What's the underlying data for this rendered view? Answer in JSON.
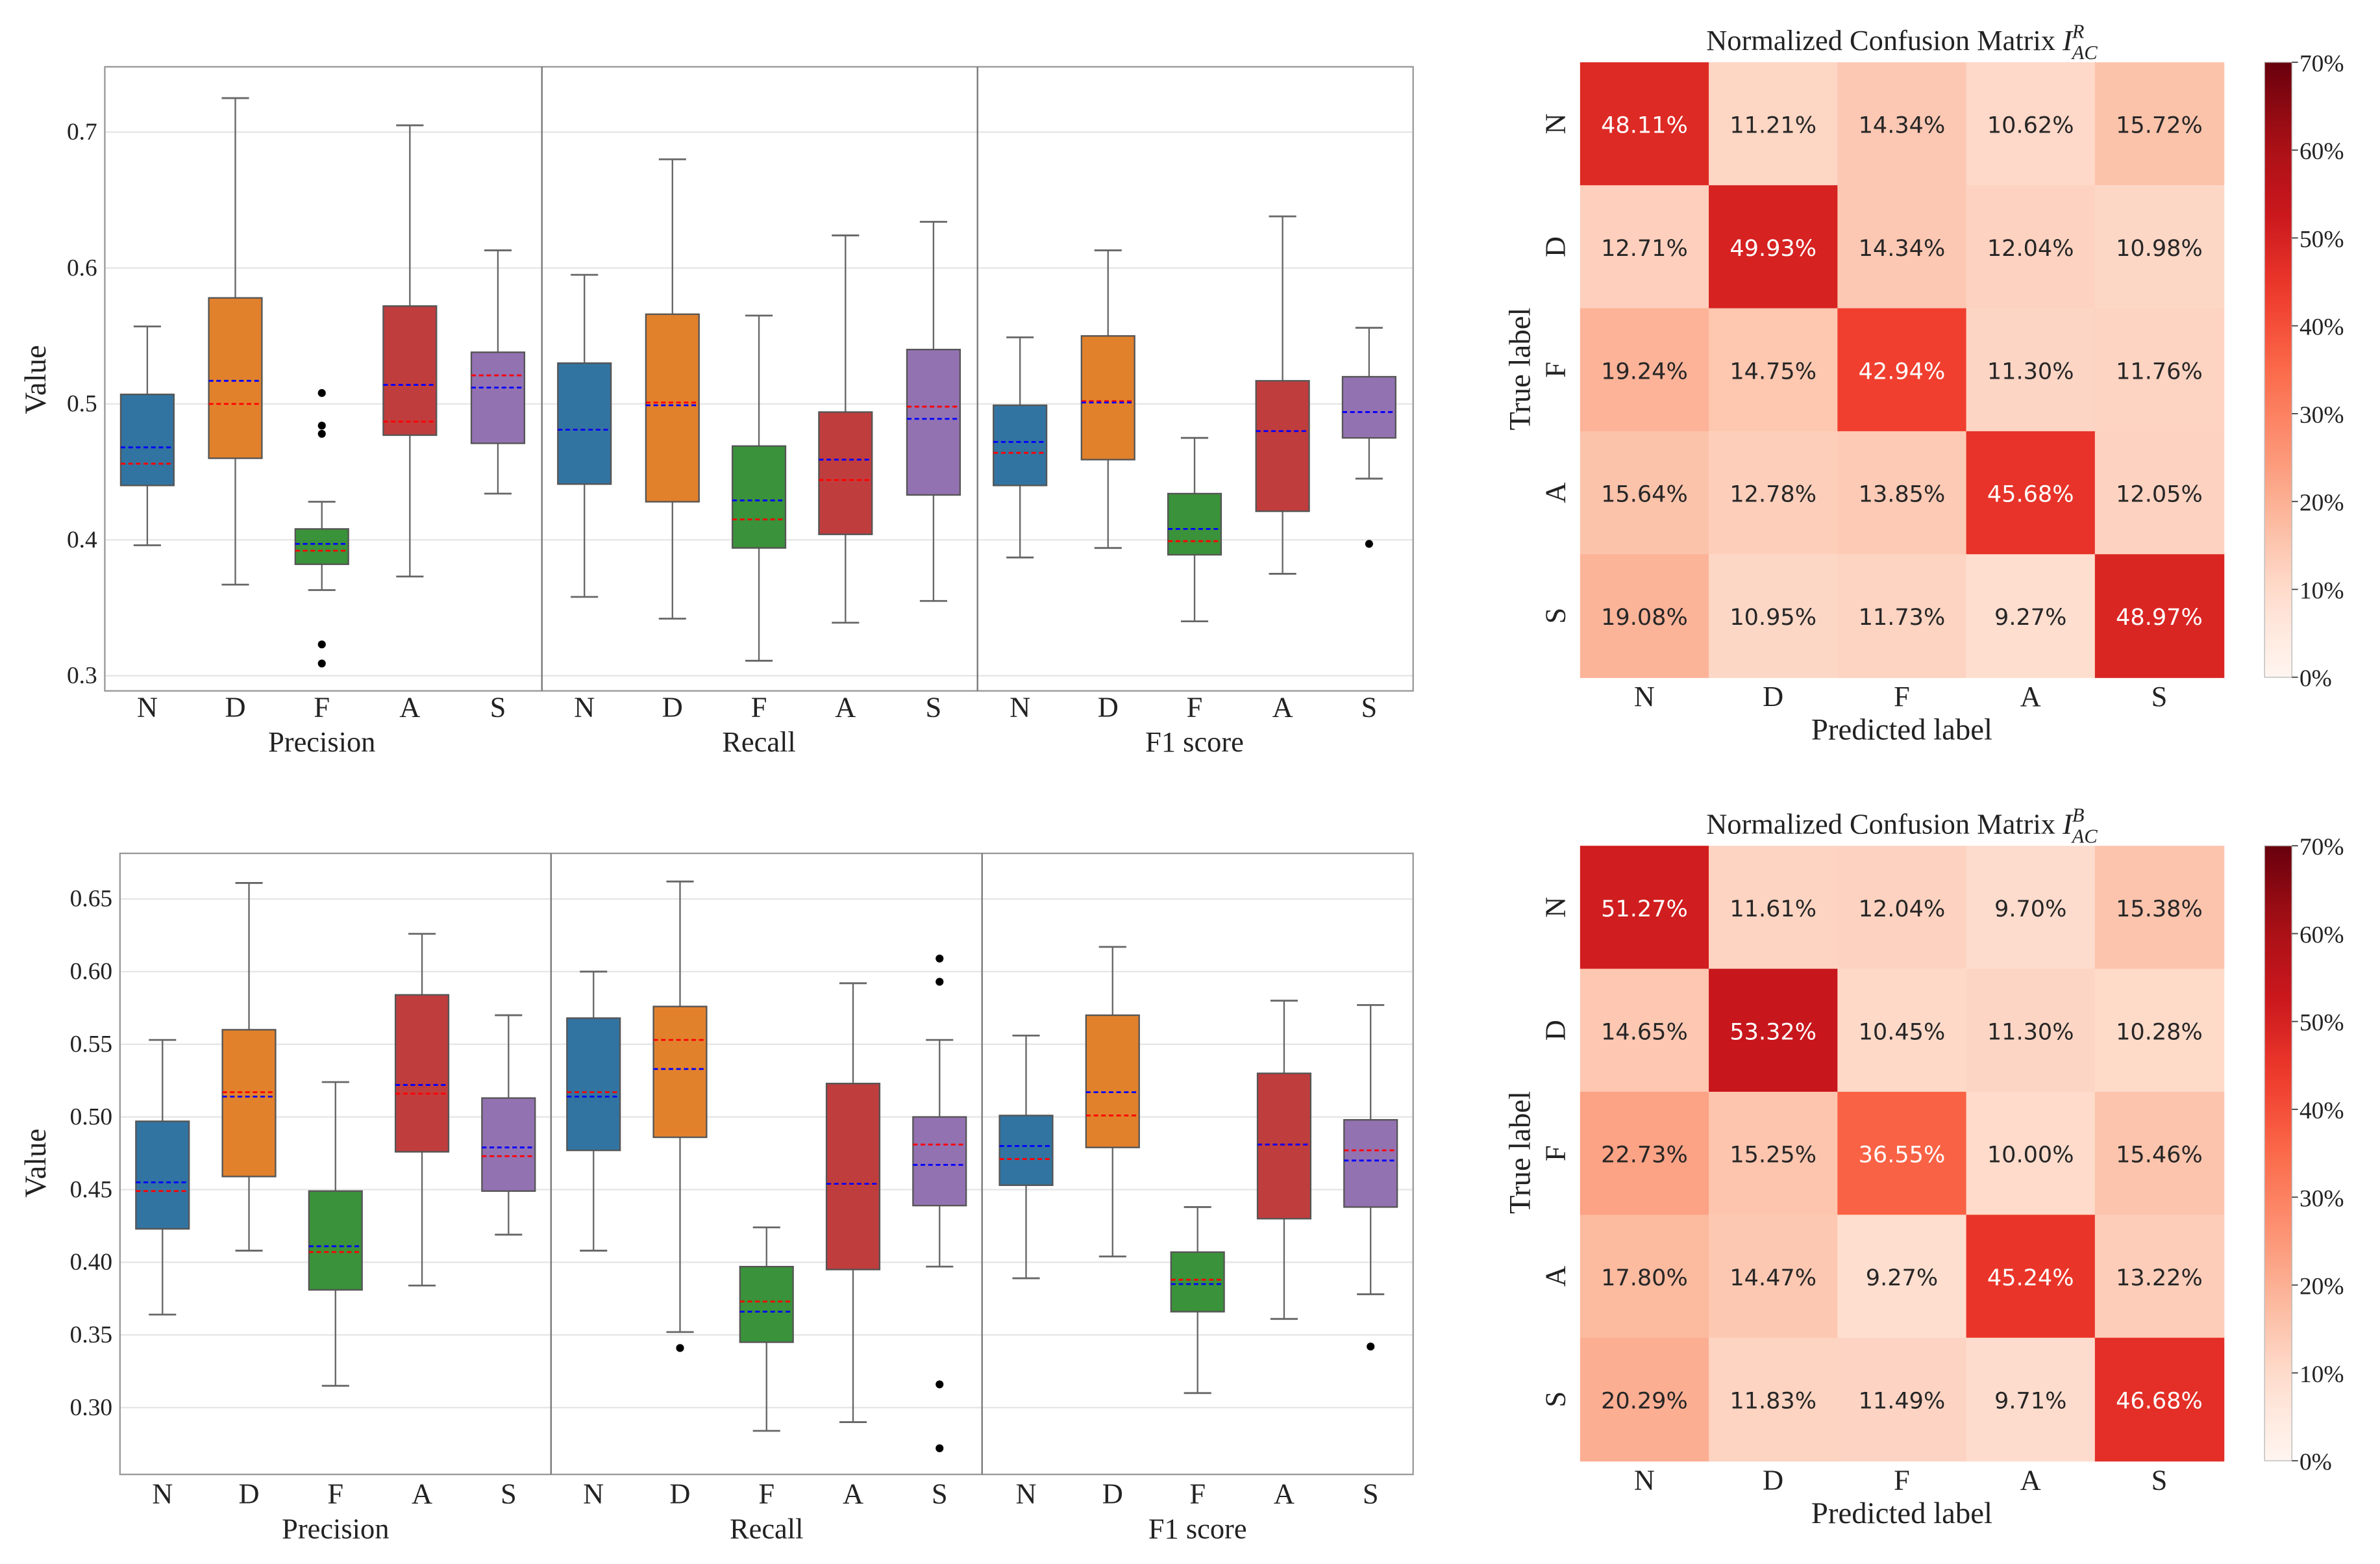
{
  "chart_data": [
    {
      "type": "box",
      "ylabel": "Value",
      "ylim": [
        0.29,
        0.745
      ],
      "yticks": [
        0.3,
        0.4,
        0.5,
        0.6,
        0.7
      ],
      "ytick_labels": [
        "0.3",
        "0.4",
        "0.5",
        "0.6",
        "0.7"
      ],
      "grid": true,
      "mean_line_color": "#0000ff",
      "median_line_color": "#ff0000",
      "groups": [
        {
          "label": "Precision",
          "boxes": [
            {
              "cat": "N",
              "min": 0.396,
              "q1": 0.44,
              "median": 0.456,
              "mean": 0.468,
              "q3": 0.507,
              "max": 0.557,
              "outliers": []
            },
            {
              "cat": "D",
              "min": 0.367,
              "q1": 0.46,
              "median": 0.5,
              "mean": 0.517,
              "q3": 0.578,
              "max": 0.725,
              "outliers": []
            },
            {
              "cat": "F",
              "min": 0.363,
              "q1": 0.382,
              "median": 0.392,
              "mean": 0.397,
              "q3": 0.408,
              "max": 0.428,
              "outliers": [
                0.508,
                0.484,
                0.478,
                0.323,
                0.309
              ]
            },
            {
              "cat": "A",
              "min": 0.373,
              "q1": 0.477,
              "median": 0.487,
              "mean": 0.514,
              "q3": 0.572,
              "max": 0.705,
              "outliers": []
            },
            {
              "cat": "S",
              "min": 0.434,
              "q1": 0.471,
              "median": 0.521,
              "mean": 0.512,
              "q3": 0.538,
              "max": 0.613,
              "outliers": []
            }
          ]
        },
        {
          "label": "Recall",
          "boxes": [
            {
              "cat": "N",
              "min": 0.358,
              "q1": 0.441,
              "median": 0.481,
              "mean": 0.481,
              "q3": 0.53,
              "max": 0.595,
              "outliers": []
            },
            {
              "cat": "D",
              "min": 0.342,
              "q1": 0.428,
              "median": 0.501,
              "mean": 0.499,
              "q3": 0.566,
              "max": 0.68,
              "outliers": []
            },
            {
              "cat": "F",
              "min": 0.311,
              "q1": 0.394,
              "median": 0.415,
              "mean": 0.429,
              "q3": 0.469,
              "max": 0.565,
              "outliers": []
            },
            {
              "cat": "A",
              "min": 0.339,
              "q1": 0.404,
              "median": 0.444,
              "mean": 0.459,
              "q3": 0.494,
              "max": 0.624,
              "outliers": []
            },
            {
              "cat": "S",
              "min": 0.355,
              "q1": 0.433,
              "median": 0.498,
              "mean": 0.489,
              "q3": 0.54,
              "max": 0.634,
              "outliers": []
            }
          ]
        },
        {
          "label": "F1 score",
          "boxes": [
            {
              "cat": "N",
              "min": 0.387,
              "q1": 0.44,
              "median": 0.464,
              "mean": 0.472,
              "q3": 0.499,
              "max": 0.549,
              "outliers": []
            },
            {
              "cat": "D",
              "min": 0.394,
              "q1": 0.459,
              "median": 0.502,
              "mean": 0.501,
              "q3": 0.55,
              "max": 0.613,
              "outliers": []
            },
            {
              "cat": "F",
              "min": 0.34,
              "q1": 0.389,
              "median": 0.399,
              "mean": 0.408,
              "q3": 0.434,
              "max": 0.475,
              "outliers": []
            },
            {
              "cat": "A",
              "min": 0.375,
              "q1": 0.421,
              "median": 0.48,
              "mean": 0.48,
              "q3": 0.517,
              "max": 0.638,
              "outliers": []
            },
            {
              "cat": "S",
              "min": 0.445,
              "q1": 0.475,
              "median": 0.494,
              "mean": 0.494,
              "q3": 0.52,
              "max": 0.556,
              "outliers": [
                0.397
              ]
            }
          ]
        }
      ]
    },
    {
      "type": "heatmap",
      "title": "Normalized Confusion Matrix",
      "title_symbol": "I",
      "title_sup": "R",
      "title_sub": "AC",
      "xlabel": "Predicted label",
      "ylabel": "True label",
      "labels": [
        "N",
        "D",
        "F",
        "A",
        "S"
      ],
      "values": [
        [
          48.11,
          11.21,
          14.34,
          10.62,
          15.72
        ],
        [
          12.71,
          49.93,
          14.34,
          12.04,
          10.98
        ],
        [
          19.24,
          14.75,
          42.94,
          11.3,
          11.76
        ],
        [
          15.64,
          12.78,
          13.85,
          45.68,
          12.05
        ],
        [
          19.08,
          10.95,
          11.73,
          9.27,
          48.97
        ]
      ],
      "value_labels": [
        [
          "48.11%",
          "11.21%",
          "14.34%",
          "10.62%",
          "15.72%"
        ],
        [
          "12.71%",
          "49.93%",
          "14.34%",
          "12.04%",
          "10.98%"
        ],
        [
          "19.24%",
          "14.75%",
          "42.94%",
          "11.30%",
          "11.76%"
        ],
        [
          "15.64%",
          "12.78%",
          "13.85%",
          "45.68%",
          "12.05%"
        ],
        [
          "19.08%",
          "10.95%",
          "11.73%",
          "9.27%",
          "48.97%"
        ]
      ],
      "colorbar": {
        "range": [
          0,
          70
        ],
        "colormap": "Reds",
        "ticks": [
          "0%",
          "10%",
          "20%",
          "30%",
          "40%",
          "50%",
          "60%",
          "70%"
        ]
      }
    },
    {
      "type": "box",
      "ylabel": "Value",
      "ylim": [
        0.255,
        0.682
      ],
      "yticks": [
        0.3,
        0.35,
        0.4,
        0.45,
        0.5,
        0.55,
        0.6,
        0.65
      ],
      "ytick_labels": [
        "0.30",
        "0.35",
        "0.40",
        "0.45",
        "0.50",
        "0.55",
        "0.60",
        "0.65"
      ],
      "grid": true,
      "mean_line_color": "#0000ff",
      "median_line_color": "#ff0000",
      "groups": [
        {
          "label": "Precision",
          "boxes": [
            {
              "cat": "N",
              "min": 0.364,
              "q1": 0.423,
              "median": 0.449,
              "mean": 0.455,
              "q3": 0.497,
              "max": 0.553,
              "outliers": []
            },
            {
              "cat": "D",
              "min": 0.408,
              "q1": 0.459,
              "median": 0.517,
              "mean": 0.514,
              "q3": 0.56,
              "max": 0.661,
              "outliers": []
            },
            {
              "cat": "F",
              "min": 0.315,
              "q1": 0.381,
              "median": 0.407,
              "mean": 0.411,
              "q3": 0.449,
              "max": 0.524,
              "outliers": []
            },
            {
              "cat": "A",
              "min": 0.384,
              "q1": 0.476,
              "median": 0.516,
              "mean": 0.522,
              "q3": 0.584,
              "max": 0.626,
              "outliers": []
            },
            {
              "cat": "S",
              "min": 0.419,
              "q1": 0.449,
              "median": 0.473,
              "mean": 0.479,
              "q3": 0.513,
              "max": 0.57,
              "outliers": []
            }
          ]
        },
        {
          "label": "Recall",
          "boxes": [
            {
              "cat": "N",
              "min": 0.408,
              "q1": 0.477,
              "median": 0.517,
              "mean": 0.514,
              "q3": 0.568,
              "max": 0.6,
              "outliers": []
            },
            {
              "cat": "D",
              "min": 0.352,
              "q1": 0.486,
              "median": 0.553,
              "mean": 0.533,
              "q3": 0.576,
              "max": 0.662,
              "outliers": [
                0.341
              ]
            },
            {
              "cat": "F",
              "min": 0.284,
              "q1": 0.345,
              "median": 0.373,
              "mean": 0.366,
              "q3": 0.397,
              "max": 0.424,
              "outliers": []
            },
            {
              "cat": "A",
              "min": 0.29,
              "q1": 0.395,
              "median": 0.454,
              "mean": 0.454,
              "q3": 0.523,
              "max": 0.592,
              "outliers": []
            },
            {
              "cat": "S",
              "min": 0.397,
              "q1": 0.439,
              "median": 0.481,
              "mean": 0.467,
              "q3": 0.5,
              "max": 0.553,
              "outliers": [
                0.609,
                0.593,
                0.316,
                0.272
              ]
            }
          ]
        },
        {
          "label": "F1 score",
          "boxes": [
            {
              "cat": "N",
              "min": 0.389,
              "q1": 0.453,
              "median": 0.471,
              "mean": 0.48,
              "q3": 0.501,
              "max": 0.556,
              "outliers": []
            },
            {
              "cat": "D",
              "min": 0.404,
              "q1": 0.479,
              "median": 0.501,
              "mean": 0.517,
              "q3": 0.57,
              "max": 0.617,
              "outliers": []
            },
            {
              "cat": "F",
              "min": 0.31,
              "q1": 0.366,
              "median": 0.388,
              "mean": 0.385,
              "q3": 0.407,
              "max": 0.438,
              "outliers": []
            },
            {
              "cat": "A",
              "min": 0.361,
              "q1": 0.43,
              "median": 0.481,
              "mean": 0.481,
              "q3": 0.53,
              "max": 0.58,
              "outliers": []
            },
            {
              "cat": "S",
              "min": 0.378,
              "q1": 0.438,
              "median": 0.477,
              "mean": 0.47,
              "q3": 0.498,
              "max": 0.577,
              "outliers": [
                0.342
              ]
            }
          ]
        }
      ]
    },
    {
      "type": "heatmap",
      "title": "Normalized Confusion Matrix",
      "title_symbol": "I",
      "title_sup": "B",
      "title_sub": "AC",
      "xlabel": "Predicted label",
      "ylabel": "True label",
      "labels": [
        "N",
        "D",
        "F",
        "A",
        "S"
      ],
      "values": [
        [
          51.27,
          11.61,
          12.04,
          9.7,
          15.38
        ],
        [
          14.65,
          53.32,
          10.45,
          11.3,
          10.28
        ],
        [
          22.73,
          15.25,
          36.55,
          10.0,
          15.46
        ],
        [
          17.8,
          14.47,
          9.27,
          45.24,
          13.22
        ],
        [
          20.29,
          11.83,
          11.49,
          9.71,
          46.68
        ]
      ],
      "value_labels": [
        [
          "51.27%",
          "11.61%",
          "12.04%",
          "9.70%",
          "15.38%"
        ],
        [
          "14.65%",
          "53.32%",
          "10.45%",
          "11.30%",
          "10.28%"
        ],
        [
          "22.73%",
          "15.25%",
          "36.55%",
          "10.00%",
          "15.46%"
        ],
        [
          "17.80%",
          "14.47%",
          "9.27%",
          "45.24%",
          "13.22%"
        ],
        [
          "20.29%",
          "11.83%",
          "11.49%",
          "9.71%",
          "46.68%"
        ]
      ],
      "colorbar": {
        "range": [
          0,
          70
        ],
        "colormap": "Reds",
        "ticks": [
          "0%",
          "10%",
          "20%",
          "30%",
          "40%",
          "50%",
          "60%",
          "70%"
        ]
      }
    }
  ],
  "colors": {
    "box_colors": [
      "#3274a1",
      "#e1812c",
      "#3a923a",
      "#c03d3e",
      "#9372b2"
    ],
    "grid": "#e6e6e6",
    "axis": "#999999"
  }
}
